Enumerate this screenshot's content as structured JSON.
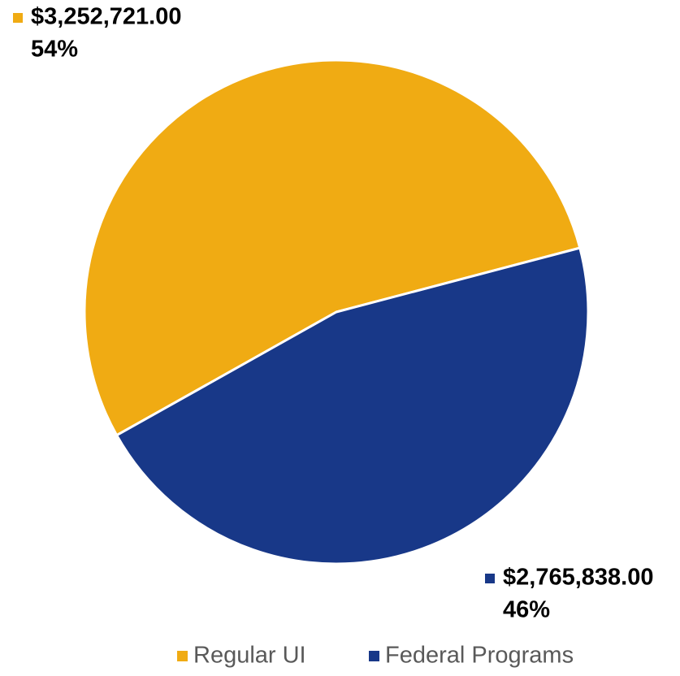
{
  "chart_data": {
    "type": "pie",
    "categories": [
      "Regular UI",
      "Federal Programs"
    ],
    "values": [
      3252721,
      2765838
    ],
    "value_labels": [
      "$3,252,721.00",
      "$2,765,838.00"
    ],
    "percent_labels": [
      "54%",
      "46%"
    ],
    "colors": [
      "#f0ab13",
      "#183888"
    ],
    "legend": "bottom"
  }
}
